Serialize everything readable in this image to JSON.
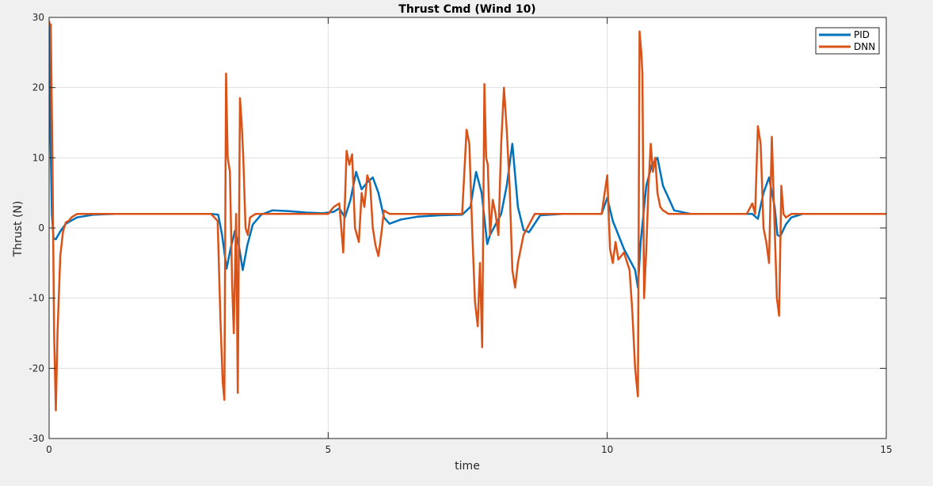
{
  "chart_data": {
    "type": "line",
    "title": "Thrust Cmd (Wind 10)",
    "xlabel": "time",
    "ylabel": "Thrust (N)",
    "xlim": [
      0,
      15
    ],
    "ylim": [
      -30,
      30
    ],
    "xticks": [
      0,
      5,
      10,
      15
    ],
    "yticks": [
      -30,
      -20,
      -10,
      0,
      10,
      20,
      30
    ],
    "grid": true,
    "legend_position": "top-right",
    "colors": {
      "PID": "#0072bd",
      "DNN": "#d95319"
    },
    "series": [
      {
        "name": "PID",
        "color": "#0072bd",
        "x": [
          0.0,
          0.02,
          0.05,
          0.08,
          0.12,
          0.2,
          0.3,
          0.5,
          0.8,
          1.2,
          2.0,
          2.9,
          3.03,
          3.1,
          3.18,
          3.25,
          3.33,
          3.4,
          3.47,
          3.55,
          3.65,
          3.8,
          4.0,
          4.3,
          4.6,
          4.9,
          5.1,
          5.2,
          5.3,
          5.4,
          5.5,
          5.6,
          5.7,
          5.8,
          5.9,
          6.0,
          6.1,
          6.3,
          6.6,
          7.0,
          7.4,
          7.55,
          7.65,
          7.75,
          7.85,
          7.9,
          8.0,
          8.1,
          8.2,
          8.3,
          8.4,
          8.5,
          8.6,
          8.8,
          9.2,
          9.6,
          9.9,
          10.0,
          10.1,
          10.2,
          10.3,
          10.4,
          10.5,
          10.55,
          10.6,
          10.7,
          10.8,
          10.9,
          11.0,
          11.2,
          11.5,
          12.0,
          12.4,
          12.6,
          12.7,
          12.8,
          12.9,
          13.0,
          13.05,
          13.1,
          13.2,
          13.3,
          13.5,
          14.0,
          14.5,
          15.0
        ],
        "y": [
          29.5,
          15.0,
          2.0,
          -1.5,
          -1.6,
          -0.5,
          0.6,
          1.5,
          1.9,
          2.0,
          2.0,
          2.0,
          1.9,
          -1.0,
          -5.8,
          -3.0,
          -0.4,
          -2.5,
          -6.0,
          -2.5,
          0.5,
          1.9,
          2.5,
          2.4,
          2.2,
          2.1,
          2.3,
          2.8,
          1.5,
          4.0,
          8.0,
          5.5,
          6.5,
          7.2,
          5.0,
          1.5,
          0.6,
          1.2,
          1.6,
          1.8,
          1.9,
          3.0,
          8.0,
          5.0,
          -2.3,
          -1.0,
          0.5,
          2.0,
          6.0,
          12.0,
          3.0,
          -0.3,
          -0.6,
          1.8,
          2.0,
          2.0,
          2.0,
          4.3,
          1.0,
          -1.0,
          -3.0,
          -4.5,
          -6.0,
          -8.5,
          -2.0,
          6.0,
          9.0,
          10.0,
          6.0,
          2.5,
          2.0,
          2.0,
          2.0,
          2.0,
          1.3,
          5.0,
          7.2,
          3.0,
          -1.0,
          -1.2,
          0.5,
          1.5,
          2.0,
          2.0,
          2.0,
          2.0
        ]
      },
      {
        "name": "DNN",
        "color": "#d95319",
        "x": [
          0.0,
          0.01,
          0.03,
          0.06,
          0.09,
          0.12,
          0.15,
          0.2,
          0.25,
          0.3,
          0.35,
          0.4,
          0.5,
          0.7,
          1.0,
          2.0,
          2.9,
          3.02,
          3.07,
          3.11,
          3.14,
          3.17,
          3.2,
          3.24,
          3.28,
          3.31,
          3.35,
          3.38,
          3.42,
          3.45,
          3.48,
          3.52,
          3.56,
          3.6,
          3.7,
          4.0,
          4.5,
          5.0,
          5.1,
          5.2,
          5.27,
          5.33,
          5.38,
          5.43,
          5.48,
          5.55,
          5.6,
          5.65,
          5.7,
          5.75,
          5.8,
          5.85,
          5.9,
          5.95,
          6.0,
          6.1,
          6.5,
          7.0,
          7.4,
          7.48,
          7.53,
          7.58,
          7.63,
          7.68,
          7.72,
          7.76,
          7.8,
          7.83,
          7.86,
          7.9,
          7.95,
          8.0,
          8.05,
          8.1,
          8.15,
          8.2,
          8.25,
          8.3,
          8.35,
          8.4,
          8.5,
          8.7,
          9.0,
          9.5,
          9.9,
          10.0,
          10.05,
          10.1,
          10.15,
          10.2,
          10.3,
          10.4,
          10.45,
          10.5,
          10.55,
          10.58,
          10.61,
          10.63,
          10.66,
          10.7,
          10.74,
          10.78,
          10.82,
          10.86,
          10.9,
          10.95,
          11.0,
          11.1,
          11.3,
          11.6,
          12.0,
          12.5,
          12.6,
          12.65,
          12.7,
          12.75,
          12.8,
          12.85,
          12.9,
          12.95,
          13.0,
          13.04,
          13.08,
          13.12,
          13.16,
          13.2,
          13.3,
          13.5,
          14.0,
          15.0
        ],
        "y": [
          29.5,
          29.0,
          29.0,
          10.0,
          -15.0,
          -26.0,
          -15.0,
          -4.0,
          -0.5,
          0.8,
          1.0,
          1.5,
          2.0,
          2.0,
          2.0,
          2.0,
          2.0,
          1.0,
          -13.0,
          -22.0,
          -24.5,
          22.0,
          10.0,
          8.0,
          -8.0,
          -15.0,
          2.0,
          -23.5,
          18.5,
          15.0,
          10.0,
          0.0,
          -1.0,
          1.5,
          2.0,
          2.0,
          2.0,
          2.0,
          3.0,
          3.5,
          -3.5,
          11.0,
          9.0,
          10.5,
          0.0,
          -2.0,
          5.0,
          3.0,
          7.5,
          6.5,
          0.0,
          -2.5,
          -4.0,
          -1.0,
          2.5,
          2.0,
          2.0,
          2.0,
          2.0,
          14.0,
          12.0,
          0.0,
          -10.5,
          -14.0,
          -5.0,
          -17.0,
          20.5,
          10.0,
          9.0,
          -1.0,
          4.0,
          2.0,
          -1.0,
          12.0,
          20.0,
          14.0,
          6.0,
          -6.0,
          -8.5,
          -5.0,
          -1.0,
          2.0,
          2.0,
          2.0,
          2.0,
          7.5,
          -3.0,
          -5.0,
          -2.0,
          -4.5,
          -3.5,
          -6.0,
          -12.0,
          -20.0,
          -24.0,
          28.0,
          25.0,
          22.0,
          -10.0,
          -3.0,
          6.0,
          12.0,
          8.0,
          10.0,
          5.0,
          3.0,
          2.5,
          2.0,
          2.0,
          2.0,
          2.0,
          2.0,
          3.5,
          2.0,
          14.5,
          12.0,
          0.0,
          -2.0,
          -5.0,
          13.0,
          0.0,
          -10.0,
          -12.5,
          6.0,
          2.0,
          1.5,
          2.0,
          2.0,
          2.0,
          2.0
        ]
      }
    ]
  }
}
